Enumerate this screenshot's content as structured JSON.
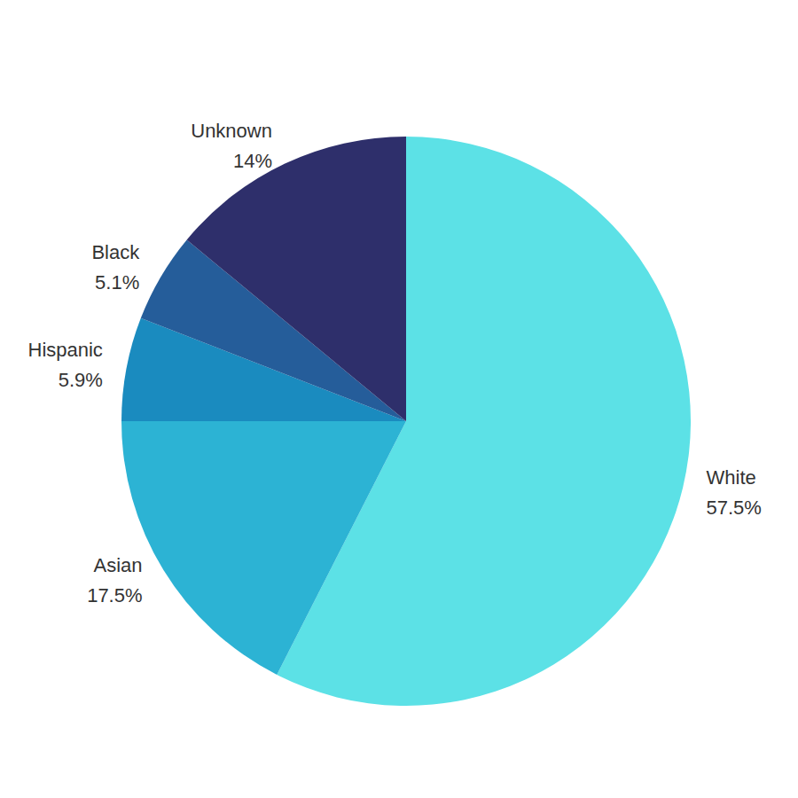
{
  "chart_data": {
    "type": "pie",
    "categories": [
      "White",
      "Asian",
      "Hispanic",
      "Black",
      "Unknown"
    ],
    "values": [
      57.5,
      17.5,
      5.9,
      5.1,
      14
    ],
    "value_labels": [
      "57.5%",
      "17.5%",
      "5.9%",
      "5.1%",
      "14%"
    ],
    "colors": [
      "#5ce1e6",
      "#2cb3d4",
      "#1a8bbf",
      "#255d9a",
      "#2e2f6b"
    ],
    "data_labels": true
  }
}
